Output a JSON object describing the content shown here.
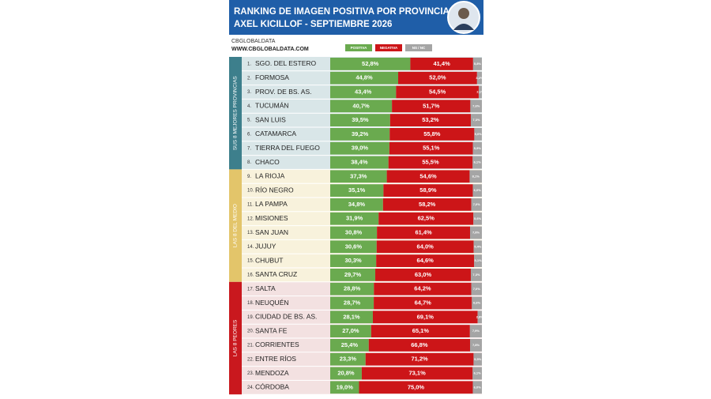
{
  "chart_data": {
    "type": "stacked-bar-horizontal",
    "title": "RANKING DE IMAGEN POSITIVA POR PROVINCIAS",
    "subtitle": "AXEL KICILLOF - SEPTIEMBRE 2026",
    "brand": "CBGLOBALDATA",
    "website": "WWW.CBGLOBALDATA.COM",
    "ranks": [
      "1.",
      "2.",
      "3.",
      "4.",
      "5.",
      "6.",
      "7.",
      "8.",
      "9.",
      "10.",
      "11.",
      "12.",
      "13.",
      "14.",
      "15.",
      "16.",
      "17.",
      "18.",
      "19.",
      "20.",
      "21.",
      "22.",
      "23.",
      "24."
    ],
    "categories": [
      "SGO. DEL ESTERO",
      "FORMOSA",
      "PROV. DE BS. AS.",
      "TUCUMÁN",
      "SAN LUIS",
      "CATAMARCA",
      "TIERRA DEL FUEGO",
      "CHACO",
      "LA RIOJA",
      "RÍO NEGRO",
      "LA PAMPA",
      "MISIONES",
      "SAN JUAN",
      "JUJUY",
      "CHUBUT",
      "SANTA CRUZ",
      "SALTA",
      "NEUQUÉN",
      "CIUDAD DE BS. AS.",
      "SANTA FE",
      "CORRIENTES",
      "ENTRE RÍOS",
      "MENDOZA",
      "CÓRDOBA"
    ],
    "groups": [
      {
        "label": "SUS 8 MEJORES PROVINCIAS",
        "color": "#3d7f8c",
        "background": "#d9e6e8"
      },
      {
        "label": "LAS 8 DEL MEDIO",
        "color": "#e3c56a",
        "background": "#f8f2dc"
      },
      {
        "label": "LAS 8 PEORES",
        "color": "#c9181e",
        "background": "#f3e1e1"
      }
    ],
    "series": [
      {
        "name": "POSITIVA",
        "color": "#6aaa4f",
        "values": [
          52.8,
          44.8,
          43.4,
          40.7,
          39.5,
          39.2,
          39.0,
          38.4,
          37.3,
          35.1,
          34.8,
          31.9,
          30.8,
          30.6,
          30.3,
          29.7,
          28.8,
          28.7,
          28.1,
          27.0,
          25.4,
          23.3,
          20.8,
          19.0
        ],
        "value_labels": [
          "52,8%",
          "44,8%",
          "43,4%",
          "40,7%",
          "39,5%",
          "39,2%",
          "39,0%",
          "38,4%",
          "37,3%",
          "35,1%",
          "34,8%",
          "31,9%",
          "30,8%",
          "30,6%",
          "30,3%",
          "29,7%",
          "28,8%",
          "28,7%",
          "28,1%",
          "27,0%",
          "25,4%",
          "23,3%",
          "20,8%",
          "19,0%"
        ]
      },
      {
        "name": "NEGATIVA",
        "color": "#cc1518",
        "values": [
          41.4,
          52.0,
          54.5,
          51.7,
          53.2,
          55.8,
          55.1,
          55.5,
          54.6,
          58.9,
          58.2,
          62.5,
          61.4,
          64.0,
          64.6,
          63.0,
          64.2,
          64.7,
          69.1,
          65.1,
          66.8,
          71.2,
          73.1,
          75.0
        ],
        "value_labels": [
          "41,4%",
          "52,0%",
          "54,5%",
          "51,7%",
          "53,2%",
          "55,8%",
          "55,1%",
          "55,5%",
          "54,6%",
          "58,9%",
          "58,2%",
          "62,5%",
          "61,4%",
          "64,0%",
          "64,6%",
          "63,0%",
          "64,2%",
          "64,7%",
          "69,1%",
          "65,1%",
          "66,8%",
          "71,2%",
          "73,1%",
          "75,0%"
        ]
      },
      {
        "name": "NS / NC",
        "color": "#a5a5a5",
        "values": [
          5.8,
          3.2,
          2.1,
          7.6,
          7.3,
          5.0,
          5.9,
          6.1,
          8.1,
          6.0,
          7.0,
          5.6,
          7.8,
          5.4,
          5.1,
          7.3,
          7.0,
          6.6,
          2.8,
          7.9,
          7.8,
          5.5,
          6.1,
          6.0
        ],
        "value_labels": [
          "5,8%",
          "3,2%",
          "2,1%",
          "7,6%",
          "7,3%",
          "5,0%",
          "5,9%",
          "6,1%",
          "8,1%",
          "6,0%",
          "7,0%",
          "5,6%",
          "7,8%",
          "5,4%",
          "5,1%",
          "7,3%",
          "7,0%",
          "6,6%",
          "2,8%",
          "7,9%",
          "7,8%",
          "5,5%",
          "6,1%",
          "6,0%"
        ]
      }
    ]
  }
}
